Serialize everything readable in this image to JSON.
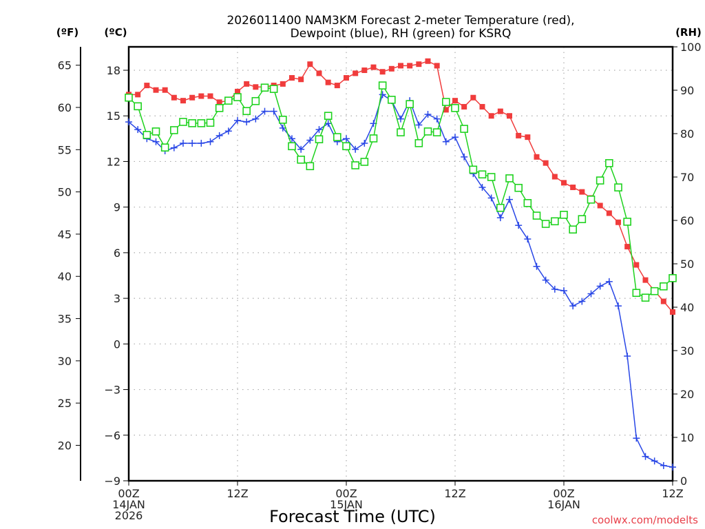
{
  "chart_data": {
    "type": "line",
    "title_line1": "2026011400 NAM3KM Forecast 2-meter Temperature (red),",
    "title_line2": "Dewpoint (blue), RH (green) for KSRQ",
    "xlabel": "Forecast Time (UTC)",
    "credit": "coolwx.com/modelts",
    "left_unit_f": "(ºF)",
    "left_unit_c": "(ºC)",
    "right_unit": "(RH)",
    "x_hours_range": [
      0,
      60
    ],
    "x_ticks": [
      {
        "hour": 0,
        "lines": [
          "00Z",
          "14JAN",
          "2026"
        ]
      },
      {
        "hour": 12,
        "lines": [
          "12Z"
        ]
      },
      {
        "hour": 24,
        "lines": [
          "00Z",
          "15JAN"
        ]
      },
      {
        "hour": 36,
        "lines": [
          "12Z"
        ]
      },
      {
        "hour": 48,
        "lines": [
          "00Z",
          "16JAN"
        ]
      },
      {
        "hour": 60,
        "lines": [
          "12Z"
        ]
      }
    ],
    "yC_range": [
      -9,
      18
    ],
    "yC_ticks": [
      "18",
      "15",
      "12",
      "9",
      "6",
      "3",
      "0",
      "−3",
      "−6",
      "−9"
    ],
    "yC_tick_values": [
      18,
      15,
      12,
      9,
      6,
      3,
      0,
      -3,
      -6,
      -9
    ],
    "yF_ticks": [
      "65",
      "60",
      "55",
      "50",
      "45",
      "40",
      "35",
      "30",
      "25",
      "20"
    ],
    "yF_tick_values": [
      65,
      60,
      55,
      50,
      45,
      40,
      35,
      30,
      25,
      20
    ],
    "yRH_range": [
      0,
      100
    ],
    "yRH_ticks": [
      "100",
      "90",
      "80",
      "70",
      "60",
      "50",
      "40",
      "30",
      "20",
      "10",
      "0"
    ],
    "yRH_tick_values": [
      100,
      90,
      80,
      70,
      60,
      50,
      40,
      30,
      20,
      10,
      0
    ],
    "grid": true,
    "series": [
      {
        "name": "Temperature",
        "unit": "C",
        "color": "#f03c3c",
        "marker": "filled-square",
        "values": [
          16.4,
          16.4,
          17.0,
          16.7,
          16.7,
          16.2,
          16.0,
          16.2,
          16.3,
          16.3,
          15.9,
          16.0,
          16.6,
          17.1,
          16.9,
          16.9,
          17.0,
          17.1,
          17.5,
          17.4,
          18.4,
          17.8,
          17.2,
          17.0,
          17.5,
          17.8,
          18.0,
          18.2,
          17.9,
          18.1,
          18.3,
          18.3,
          18.4,
          18.6,
          18.3,
          15.4,
          16.0,
          15.6,
          16.2,
          15.6,
          15.0,
          15.3,
          15.0,
          13.7,
          13.6,
          12.3,
          11.9,
          11.0,
          10.6,
          10.3,
          10.0,
          9.6,
          9.1,
          8.6,
          8.0,
          6.4,
          5.2,
          4.2,
          3.5,
          2.8,
          2.1
        ]
      },
      {
        "name": "Dewpoint",
        "unit": "C",
        "color": "#2846e6",
        "marker": "plus",
        "values": [
          14.6,
          14.1,
          13.5,
          13.3,
          12.7,
          12.9,
          13.2,
          13.2,
          13.2,
          13.3,
          13.7,
          14.0,
          14.7,
          14.6,
          14.8,
          15.3,
          15.3,
          14.2,
          13.5,
          12.8,
          13.4,
          14.1,
          14.5,
          13.3,
          13.5,
          12.8,
          13.2,
          14.5,
          16.4,
          16.0,
          14.8,
          16.0,
          14.4,
          15.1,
          14.8,
          13.3,
          13.6,
          12.3,
          11.2,
          10.3,
          9.6,
          8.3,
          9.5,
          7.8,
          6.9,
          5.1,
          4.2,
          3.6,
          3.5,
          2.5,
          2.8,
          3.3,
          3.8,
          4.1,
          2.5,
          -0.8,
          -6.2,
          -7.4,
          -7.7,
          -8.0,
          -8.1
        ]
      },
      {
        "name": "RH",
        "unit": "%",
        "color": "#1ed21e",
        "marker": "open-square",
        "values": [
          88.3,
          86.3,
          79.7,
          80.5,
          76.8,
          80.8,
          82.7,
          82.4,
          82.4,
          82.5,
          85.9,
          87.6,
          88.4,
          85.2,
          87.5,
          90.6,
          90.3,
          83.2,
          77.1,
          74.0,
          72.5,
          78.7,
          84.1,
          79.2,
          77.1,
          72.7,
          73.5,
          78.9,
          91.1,
          87.8,
          80.3,
          86.8,
          77.8,
          80.5,
          80.3,
          87.3,
          85.9,
          81.1,
          71.7,
          70.6,
          70.0,
          62.9,
          69.7,
          67.5,
          64.0,
          61.1,
          59.2,
          59.8,
          61.3,
          57.9,
          60.3,
          64.8,
          69.2,
          73.2,
          67.6,
          59.7,
          43.3,
          42.2,
          43.7,
          44.8,
          46.7
        ]
      }
    ]
  }
}
